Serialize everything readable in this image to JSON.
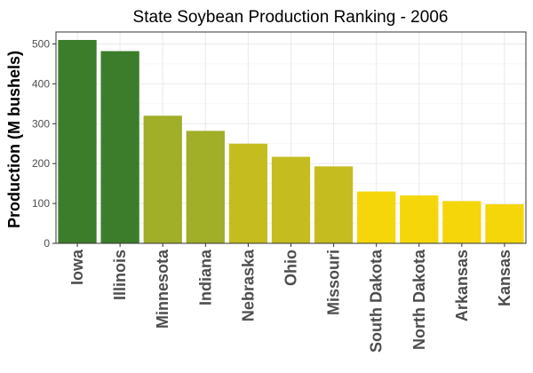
{
  "chart_data": {
    "type": "bar",
    "title": "State Soybean Production Ranking - 2006",
    "xlabel": "",
    "ylabel": "Production (M bushels)",
    "ylim": [
      0,
      530
    ],
    "yticks": [
      0,
      100,
      200,
      300,
      400,
      500
    ],
    "grid": true,
    "categories": [
      "Iowa",
      "Illinois",
      "Minnesota",
      "Indiana",
      "Nebraska",
      "Ohio",
      "Missouri",
      "South Dakota",
      "North Dakota",
      "Arkansas",
      "Kansas"
    ],
    "values": [
      510,
      482,
      320,
      282,
      250,
      217,
      193,
      130,
      120,
      106,
      98
    ],
    "colors": [
      "#3c7d2b",
      "#3c7d2b",
      "#a0ae28",
      "#a0ae28",
      "#c5bd20",
      "#c5bd20",
      "#c5bd20",
      "#f4d60a",
      "#f4d60a",
      "#f4d60a",
      "#f4d60a"
    ]
  }
}
